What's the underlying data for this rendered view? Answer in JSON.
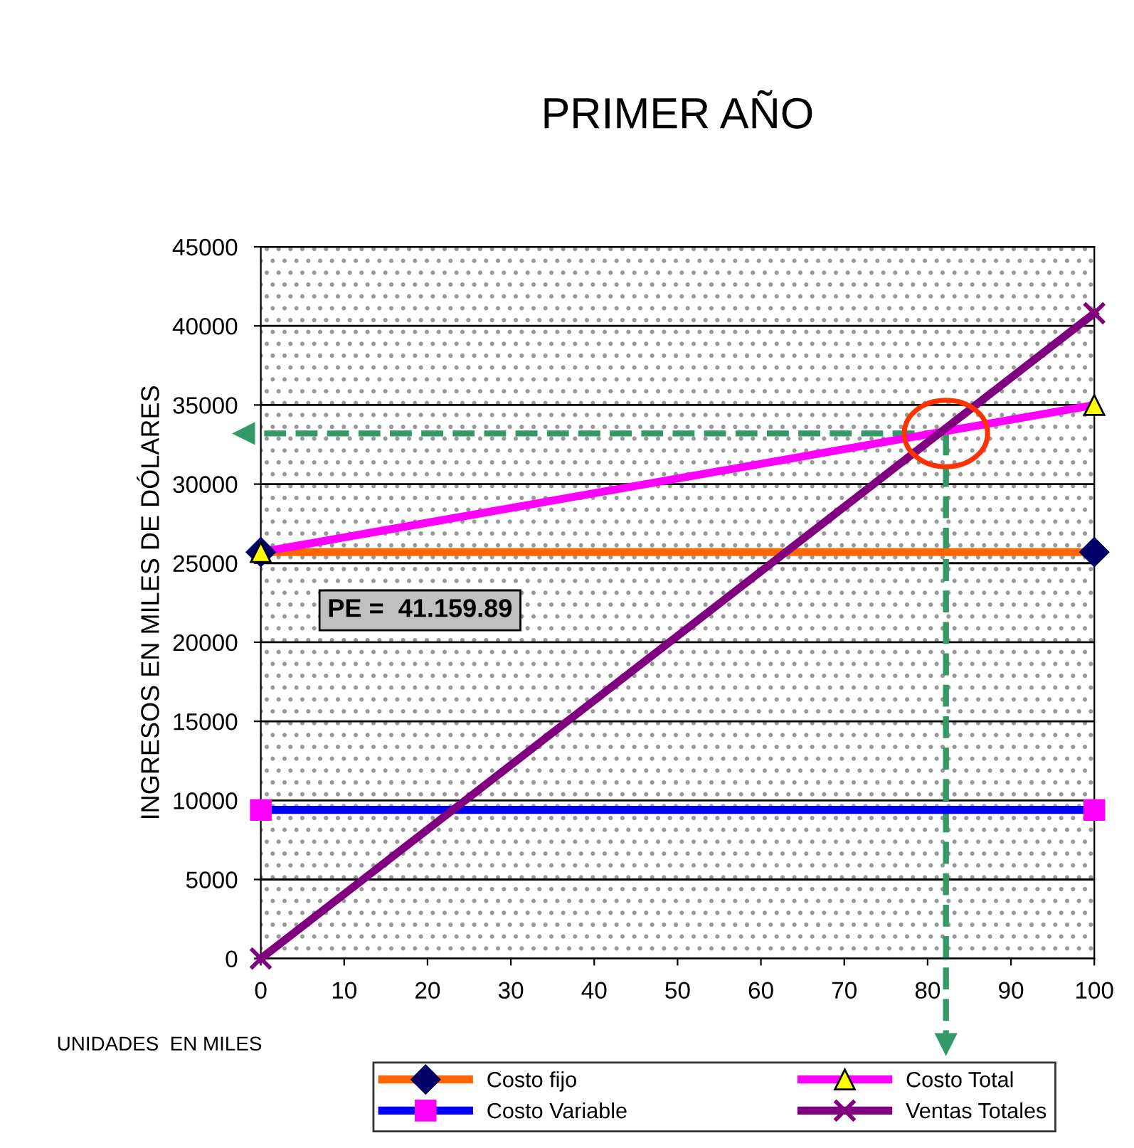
{
  "chart_data": {
    "type": "line",
    "title": "PRIMER AÑO",
    "xlabel": "UNIDADES  EN MILES",
    "ylabel": "INGRESOS EN MILES DE DÓLARES",
    "x": [
      0,
      100
    ],
    "series": [
      {
        "name": "Costo fijo",
        "color": "#ff6600",
        "marker": "diamond",
        "colors": [
          "#000066",
          "#000066"
        ],
        "values": [
          25700,
          25700
        ]
      },
      {
        "name": "Costo Variable",
        "color": "#0000ff",
        "marker": "square",
        "colors": [
          "#ff00ff",
          "#ff00ff"
        ],
        "values": [
          9400,
          9400
        ]
      },
      {
        "name": "Costo Total",
        "color": "#ff00ff",
        "marker": "triangle",
        "colors": [
          "#ffff00",
          "#ffff00"
        ],
        "values": [
          25700,
          35000
        ]
      },
      {
        "name": "Ventas Totales",
        "color": "#800080",
        "marker": "cross",
        "colors": [
          "#800080",
          "#800080"
        ],
        "values": [
          0,
          40800
        ]
      }
    ],
    "xlim": [
      0,
      100
    ],
    "xticks": [
      0,
      10,
      20,
      30,
      40,
      50,
      60,
      70,
      80,
      90,
      100
    ],
    "ylim": [
      0,
      45000
    ],
    "yticks": [
      0,
      5000,
      10000,
      15000,
      20000,
      25000,
      30000,
      35000,
      40000,
      45000
    ],
    "grid": "y",
    "legend": "bottom",
    "ref_lines": [
      {
        "axis": "x",
        "value": 82.2,
        "color": "#339966",
        "line_style": "dashed"
      },
      {
        "axis": "y",
        "value": 33200,
        "color": "#339966",
        "line_style": "dashed"
      }
    ],
    "annotations": [
      "PE =  41.159.89"
    ]
  }
}
